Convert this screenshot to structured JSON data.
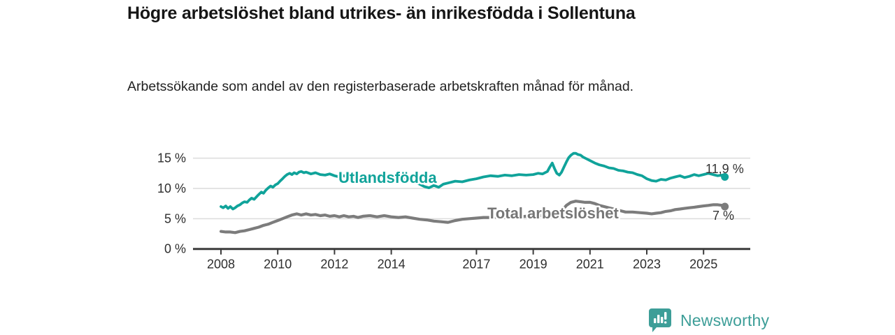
{
  "header": {
    "title": "Högre arbetslöshet bland utrikes- än inrikesfödda i Sollentuna",
    "subtitle": "Arbetssökande som andel av den registerbaserade arbetskraften månad för månad."
  },
  "footer": {
    "brand": "Newsworthy"
  },
  "colors": {
    "teal": "#10a39a",
    "gray_line": "#7c7c7c",
    "gray_label": "#767676",
    "axis": "#3b3b3b",
    "grid": "#dcdcdc",
    "tick_text": "#2e2e2e",
    "value_text": "#333333",
    "logo": "#3d9e98"
  },
  "chart_data": {
    "type": "line",
    "title": "Högre arbetslöshet bland utrikes- än inrikesfödda i Sollentuna",
    "xlabel": "",
    "ylabel": "",
    "x_unit": "year (monthly data)",
    "y_unit": "%",
    "ylim": [
      0,
      17
    ],
    "xlim": [
      2007.9,
      2026.3
    ],
    "grid": "horizontal",
    "legend_position": "inline-labels",
    "y_ticks": [
      {
        "value": 0,
        "label": "0 %"
      },
      {
        "value": 5,
        "label": "5 %"
      },
      {
        "value": 10,
        "label": "10 %"
      },
      {
        "value": 15,
        "label": "15 %"
      }
    ],
    "x_ticks": [
      {
        "value": 2008,
        "label": "2008"
      },
      {
        "value": 2010,
        "label": "2010"
      },
      {
        "value": 2012,
        "label": "2012"
      },
      {
        "value": 2014,
        "label": "2014"
      },
      {
        "value": 2017,
        "label": "2017"
      },
      {
        "value": 2019,
        "label": "2019"
      },
      {
        "value": 2021,
        "label": "2021"
      },
      {
        "value": 2023,
        "label": "2023"
      },
      {
        "value": 2025,
        "label": "2025"
      }
    ],
    "series": [
      {
        "id": "utlandsfodda",
        "name": "Utlandsfödda",
        "color": "#10a39a",
        "stroke_width": 3.8,
        "end_label": "11,9 %",
        "end_value": 11.9,
        "data": [
          [
            2008.0,
            7.0
          ],
          [
            2008.08,
            6.8
          ],
          [
            2008.17,
            7.1
          ],
          [
            2008.25,
            6.7
          ],
          [
            2008.33,
            7.0
          ],
          [
            2008.42,
            6.6
          ],
          [
            2008.5,
            6.8
          ],
          [
            2008.58,
            7.1
          ],
          [
            2008.67,
            7.3
          ],
          [
            2008.75,
            7.6
          ],
          [
            2008.83,
            7.8
          ],
          [
            2008.92,
            7.7
          ],
          [
            2009.0,
            8.1
          ],
          [
            2009.08,
            8.4
          ],
          [
            2009.17,
            8.2
          ],
          [
            2009.25,
            8.6
          ],
          [
            2009.33,
            9.0
          ],
          [
            2009.42,
            9.4
          ],
          [
            2009.5,
            9.2
          ],
          [
            2009.58,
            9.7
          ],
          [
            2009.67,
            10.1
          ],
          [
            2009.75,
            10.4
          ],
          [
            2009.83,
            10.2
          ],
          [
            2009.92,
            10.6
          ],
          [
            2010.0,
            10.8
          ],
          [
            2010.08,
            11.2
          ],
          [
            2010.17,
            11.6
          ],
          [
            2010.25,
            12.0
          ],
          [
            2010.33,
            12.3
          ],
          [
            2010.42,
            12.5
          ],
          [
            2010.5,
            12.3
          ],
          [
            2010.58,
            12.6
          ],
          [
            2010.67,
            12.4
          ],
          [
            2010.75,
            12.7
          ],
          [
            2010.83,
            12.8
          ],
          [
            2010.92,
            12.6
          ],
          [
            2011.0,
            12.7
          ],
          [
            2011.17,
            12.4
          ],
          [
            2011.33,
            12.6
          ],
          [
            2011.5,
            12.3
          ],
          [
            2011.67,
            12.2
          ],
          [
            2011.83,
            12.4
          ],
          [
            2012.0,
            12.1
          ],
          [
            2012.17,
            11.9
          ],
          [
            2012.33,
            12.1
          ],
          [
            2012.5,
            11.8
          ],
          [
            2012.67,
            12.0
          ],
          [
            2012.83,
            11.7
          ],
          [
            2013.0,
            11.9
          ],
          [
            2013.25,
            11.7
          ],
          [
            2013.5,
            11.9
          ],
          [
            2013.75,
            11.6
          ],
          [
            2014.0,
            11.8
          ],
          [
            2014.25,
            11.5
          ],
          [
            2014.5,
            11.6
          ],
          [
            2014.75,
            11.2
          ],
          [
            2015.0,
            10.7
          ],
          [
            2015.17,
            10.3
          ],
          [
            2015.33,
            10.1
          ],
          [
            2015.5,
            10.5
          ],
          [
            2015.67,
            10.2
          ],
          [
            2015.83,
            10.7
          ],
          [
            2016.0,
            10.9
          ],
          [
            2016.25,
            11.2
          ],
          [
            2016.5,
            11.1
          ],
          [
            2016.75,
            11.4
          ],
          [
            2017.0,
            11.6
          ],
          [
            2017.25,
            11.9
          ],
          [
            2017.5,
            12.1
          ],
          [
            2017.75,
            12.0
          ],
          [
            2018.0,
            12.2
          ],
          [
            2018.25,
            12.1
          ],
          [
            2018.5,
            12.3
          ],
          [
            2018.75,
            12.2
          ],
          [
            2019.0,
            12.3
          ],
          [
            2019.17,
            12.5
          ],
          [
            2019.33,
            12.4
          ],
          [
            2019.5,
            12.8
          ],
          [
            2019.58,
            13.5
          ],
          [
            2019.67,
            14.2
          ],
          [
            2019.75,
            13.3
          ],
          [
            2019.83,
            12.5
          ],
          [
            2019.92,
            12.2
          ],
          [
            2020.0,
            12.7
          ],
          [
            2020.08,
            13.5
          ],
          [
            2020.17,
            14.4
          ],
          [
            2020.25,
            15.1
          ],
          [
            2020.33,
            15.5
          ],
          [
            2020.42,
            15.8
          ],
          [
            2020.5,
            15.8
          ],
          [
            2020.58,
            15.6
          ],
          [
            2020.67,
            15.5
          ],
          [
            2020.75,
            15.2
          ],
          [
            2020.83,
            15.0
          ],
          [
            2020.92,
            14.8
          ],
          [
            2021.0,
            14.6
          ],
          [
            2021.17,
            14.2
          ],
          [
            2021.33,
            13.9
          ],
          [
            2021.5,
            13.7
          ],
          [
            2021.67,
            13.4
          ],
          [
            2021.83,
            13.3
          ],
          [
            2022.0,
            13.0
          ],
          [
            2022.17,
            12.9
          ],
          [
            2022.33,
            12.7
          ],
          [
            2022.5,
            12.6
          ],
          [
            2022.67,
            12.3
          ],
          [
            2022.83,
            12.1
          ],
          [
            2023.0,
            11.6
          ],
          [
            2023.17,
            11.3
          ],
          [
            2023.33,
            11.2
          ],
          [
            2023.5,
            11.5
          ],
          [
            2023.67,
            11.4
          ],
          [
            2023.83,
            11.7
          ],
          [
            2024.0,
            11.9
          ],
          [
            2024.17,
            12.1
          ],
          [
            2024.33,
            11.8
          ],
          [
            2024.5,
            12.0
          ],
          [
            2024.67,
            12.3
          ],
          [
            2024.83,
            12.1
          ],
          [
            2025.0,
            12.3
          ],
          [
            2025.17,
            12.5
          ],
          [
            2025.33,
            12.3
          ],
          [
            2025.5,
            12.1
          ],
          [
            2025.67,
            12.2
          ],
          [
            2025.75,
            11.9
          ]
        ]
      },
      {
        "id": "total",
        "name": "Total arbetslöshet",
        "color": "#7c7c7c",
        "stroke_width": 4.2,
        "end_label": "7 %",
        "end_value": 7.0,
        "data": [
          [
            2008.0,
            2.9
          ],
          [
            2008.17,
            2.8
          ],
          [
            2008.33,
            2.8
          ],
          [
            2008.5,
            2.7
          ],
          [
            2008.67,
            2.9
          ],
          [
            2008.83,
            3.0
          ],
          [
            2009.0,
            3.2
          ],
          [
            2009.17,
            3.4
          ],
          [
            2009.33,
            3.6
          ],
          [
            2009.5,
            3.9
          ],
          [
            2009.67,
            4.1
          ],
          [
            2009.83,
            4.4
          ],
          [
            2010.0,
            4.7
          ],
          [
            2010.17,
            5.0
          ],
          [
            2010.33,
            5.3
          ],
          [
            2010.5,
            5.6
          ],
          [
            2010.67,
            5.8
          ],
          [
            2010.83,
            5.6
          ],
          [
            2011.0,
            5.8
          ],
          [
            2011.17,
            5.6
          ],
          [
            2011.33,
            5.7
          ],
          [
            2011.5,
            5.5
          ],
          [
            2011.67,
            5.6
          ],
          [
            2011.83,
            5.4
          ],
          [
            2012.0,
            5.5
          ],
          [
            2012.17,
            5.3
          ],
          [
            2012.33,
            5.5
          ],
          [
            2012.5,
            5.3
          ],
          [
            2012.67,
            5.4
          ],
          [
            2012.83,
            5.2
          ],
          [
            2013.0,
            5.4
          ],
          [
            2013.25,
            5.5
          ],
          [
            2013.5,
            5.3
          ],
          [
            2013.75,
            5.5
          ],
          [
            2014.0,
            5.3
          ],
          [
            2014.25,
            5.2
          ],
          [
            2014.5,
            5.3
          ],
          [
            2014.75,
            5.1
          ],
          [
            2015.0,
            4.9
          ],
          [
            2015.25,
            4.8
          ],
          [
            2015.5,
            4.6
          ],
          [
            2015.75,
            4.5
          ],
          [
            2016.0,
            4.4
          ],
          [
            2016.25,
            4.7
          ],
          [
            2016.5,
            4.9
          ],
          [
            2016.75,
            5.0
          ],
          [
            2017.0,
            5.1
          ],
          [
            2017.25,
            5.2
          ],
          [
            2017.5,
            5.2
          ],
          [
            2017.75,
            5.3
          ],
          [
            2018.0,
            5.2
          ],
          [
            2018.25,
            5.3
          ],
          [
            2018.5,
            5.3
          ],
          [
            2018.75,
            5.4
          ],
          [
            2019.0,
            5.4
          ],
          [
            2019.25,
            5.5
          ],
          [
            2019.5,
            5.6
          ],
          [
            2019.75,
            5.9
          ],
          [
            2020.0,
            6.3
          ],
          [
            2020.17,
            7.2
          ],
          [
            2020.33,
            7.7
          ],
          [
            2020.5,
            7.9
          ],
          [
            2020.67,
            7.8
          ],
          [
            2020.83,
            7.7
          ],
          [
            2021.0,
            7.7
          ],
          [
            2021.17,
            7.5
          ],
          [
            2021.33,
            7.2
          ],
          [
            2021.5,
            7.0
          ],
          [
            2021.75,
            6.7
          ],
          [
            2022.0,
            6.4
          ],
          [
            2022.25,
            6.1
          ],
          [
            2022.5,
            6.1
          ],
          [
            2022.75,
            6.0
          ],
          [
            2023.0,
            5.9
          ],
          [
            2023.17,
            5.8
          ],
          [
            2023.33,
            5.9
          ],
          [
            2023.5,
            6.0
          ],
          [
            2023.67,
            6.2
          ],
          [
            2023.83,
            6.3
          ],
          [
            2024.0,
            6.5
          ],
          [
            2024.17,
            6.6
          ],
          [
            2024.33,
            6.7
          ],
          [
            2024.5,
            6.8
          ],
          [
            2024.67,
            6.9
          ],
          [
            2024.83,
            7.0
          ],
          [
            2025.0,
            7.1
          ],
          [
            2025.17,
            7.2
          ],
          [
            2025.33,
            7.3
          ],
          [
            2025.5,
            7.3
          ],
          [
            2025.67,
            7.2
          ],
          [
            2025.75,
            7.0
          ]
        ]
      }
    ]
  }
}
